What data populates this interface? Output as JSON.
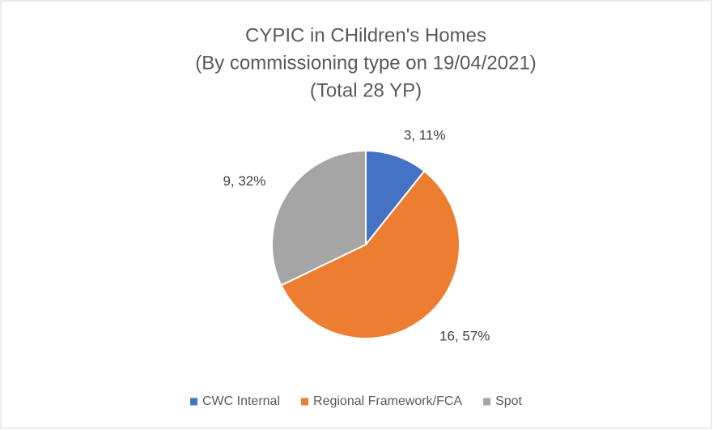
{
  "chart_data": {
    "type": "pie",
    "title": "CYPIC in CHildren's Homes",
    "subtitle": [
      "(By commissioning type on 19/04/2021)",
      "(Total 28 YP)"
    ],
    "categories": [
      "CWC Internal",
      "Regional Framework/FCA",
      "Spot"
    ],
    "values": [
      3,
      16,
      9
    ],
    "value_labels": [
      "3, 11%",
      "16, 57%",
      "9, 32%"
    ],
    "colors": [
      "#4472c4",
      "#ed7d31",
      "#a5a5a5"
    ],
    "legend": "bottom"
  }
}
